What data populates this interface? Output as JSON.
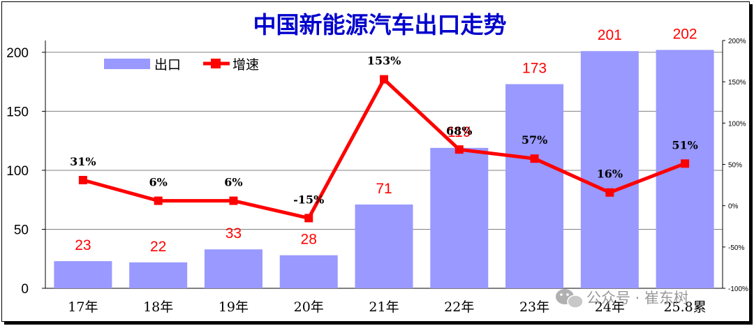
{
  "chart_data": {
    "type": "bar+line",
    "title": "中国新能源汽车出口走势",
    "categories": [
      "17年",
      "18年",
      "19年",
      "20年",
      "21年",
      "22年",
      "23年",
      "24年",
      "25.8累"
    ],
    "series": [
      {
        "name": "出口",
        "type": "bar",
        "axis": "left",
        "values": [
          23,
          22,
          33,
          28,
          71,
          119,
          173,
          201,
          202
        ],
        "labels": [
          "23",
          "22",
          "33",
          "28",
          "71",
          "119",
          "173",
          "201",
          "202"
        ]
      },
      {
        "name": "增速",
        "type": "line",
        "axis": "right",
        "values": [
          31,
          6,
          6,
          -15,
          153,
          68,
          57,
          16,
          51
        ],
        "labels": [
          "31%",
          "6%",
          "6%",
          "-15%",
          "153%",
          "68%",
          "57%",
          "16%",
          "51%"
        ]
      }
    ],
    "y_left": {
      "min": 0,
      "max": 210,
      "ticks": [
        0,
        50,
        100,
        150,
        200
      ]
    },
    "y_right": {
      "min": -100,
      "max": 200,
      "ticks": [
        "-100%",
        "-50%",
        "0%",
        "50%",
        "100%",
        "150%",
        "200%"
      ]
    },
    "legend_position": "top-left",
    "grid": "horizontal"
  },
  "colors": {
    "bar": "#9999ff",
    "line": "#ff0000",
    "title": "#0000cc",
    "bar_label": "#ff0000"
  },
  "watermark": {
    "icon": "wechat-icon",
    "text": "公众号 · 崔东树"
  }
}
